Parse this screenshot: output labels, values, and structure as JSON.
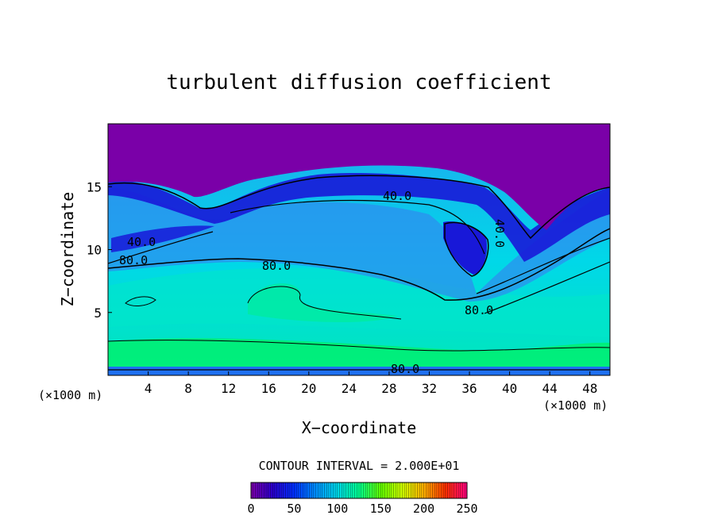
{
  "chart_data": {
    "type": "heatmap",
    "title": "turbulent diffusion coefficient",
    "xlabel": "X−coordinate",
    "ylabel": "Z−coordinate",
    "x_ticks": [
      "4",
      "8",
      "12",
      "16",
      "20",
      "24",
      "28",
      "32",
      "36",
      "40",
      "44",
      "48"
    ],
    "y_ticks": [
      "5",
      "10",
      "15"
    ],
    "x_unit_left": "(×1000 m)",
    "x_unit_right": "(×1000 m)",
    "xlim": [
      0,
      50
    ],
    "ylim": [
      0,
      20
    ],
    "contour_labels": [
      "40.0",
      "40.0",
      "80.0",
      "80.0",
      "80.0",
      "80.0",
      "40.0"
    ],
    "contour_interval_text": "CONTOUR INTERVAL = 2.000E+01",
    "colorbar": {
      "range": [
        0,
        250
      ],
      "ticks": [
        "0",
        "50",
        "100",
        "150",
        "200",
        "250"
      ],
      "colors": [
        "#7b00a8",
        "#2b00cc",
        "#0030ff",
        "#0090ff",
        "#00d8e8",
        "#00ff90",
        "#60ff00",
        "#d0ff00",
        "#ffb000",
        "#ff3000",
        "#ff0080"
      ]
    },
    "field_colors": {
      "purple": "#7a00a8",
      "dark_blue": "#1818d8",
      "mid_blue": "#2f6bf0",
      "light_blue": "#1fa8f0",
      "cyan": "#00d8e8",
      "aqua_green": "#00e8b8",
      "green": "#00f070"
    }
  }
}
